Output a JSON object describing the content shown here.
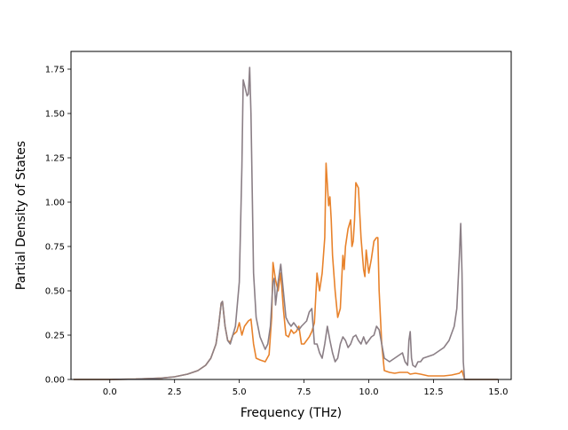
{
  "chart_data": {
    "type": "line",
    "title": "",
    "xlabel": "Frequency (THz)",
    "ylabel": "Partial Density of States",
    "xlim": [
      -1.5,
      15.5
    ],
    "ylim": [
      0.0,
      1.85
    ],
    "xticks": [
      0.0,
      2.5,
      5.0,
      7.5,
      10.0,
      12.5,
      15.0
    ],
    "xtick_labels": [
      "0.0",
      "2.5",
      "5.0",
      "7.5",
      "10.0",
      "12.5",
      "15.0"
    ],
    "yticks": [
      0.0,
      0.25,
      0.5,
      0.75,
      1.0,
      1.25,
      1.5,
      1.75
    ],
    "ytick_labels": [
      "0.00",
      "0.25",
      "0.50",
      "0.75",
      "1.00",
      "1.25",
      "1.50",
      "1.75"
    ],
    "grid": false,
    "legend": "none",
    "series": [
      {
        "color": "#e8822b",
        "points": [
          [
            -1.4,
            0.0
          ],
          [
            0.0,
            0.0
          ],
          [
            1.0,
            0.002
          ],
          [
            2.0,
            0.008
          ],
          [
            2.5,
            0.015
          ],
          [
            3.0,
            0.03
          ],
          [
            3.4,
            0.05
          ],
          [
            3.7,
            0.08
          ],
          [
            3.9,
            0.12
          ],
          [
            4.1,
            0.2
          ],
          [
            4.2,
            0.3
          ],
          [
            4.3,
            0.43
          ],
          [
            4.35,
            0.44
          ],
          [
            4.45,
            0.3
          ],
          [
            4.55,
            0.22
          ],
          [
            4.65,
            0.21
          ],
          [
            4.75,
            0.25
          ],
          [
            4.9,
            0.27
          ],
          [
            5.0,
            0.32
          ],
          [
            5.1,
            0.25
          ],
          [
            5.2,
            0.3
          ],
          [
            5.35,
            0.33
          ],
          [
            5.45,
            0.34
          ],
          [
            5.55,
            0.2
          ],
          [
            5.65,
            0.12
          ],
          [
            5.8,
            0.11
          ],
          [
            6.0,
            0.1
          ],
          [
            6.15,
            0.14
          ],
          [
            6.25,
            0.35
          ],
          [
            6.3,
            0.66
          ],
          [
            6.4,
            0.56
          ],
          [
            6.5,
            0.5
          ],
          [
            6.6,
            0.6
          ],
          [
            6.7,
            0.4
          ],
          [
            6.8,
            0.25
          ],
          [
            6.9,
            0.24
          ],
          [
            7.0,
            0.28
          ],
          [
            7.1,
            0.26
          ],
          [
            7.2,
            0.27
          ],
          [
            7.3,
            0.3
          ],
          [
            7.4,
            0.2
          ],
          [
            7.5,
            0.2
          ],
          [
            7.6,
            0.22
          ],
          [
            7.7,
            0.24
          ],
          [
            7.8,
            0.27
          ],
          [
            7.9,
            0.32
          ],
          [
            8.0,
            0.6
          ],
          [
            8.1,
            0.5
          ],
          [
            8.2,
            0.6
          ],
          [
            8.3,
            0.8
          ],
          [
            8.35,
            1.22
          ],
          [
            8.4,
            1.1
          ],
          [
            8.45,
            0.98
          ],
          [
            8.5,
            1.03
          ],
          [
            8.55,
            0.9
          ],
          [
            8.6,
            0.7
          ],
          [
            8.7,
            0.5
          ],
          [
            8.8,
            0.35
          ],
          [
            8.9,
            0.4
          ],
          [
            9.0,
            0.7
          ],
          [
            9.05,
            0.62
          ],
          [
            9.1,
            0.75
          ],
          [
            9.2,
            0.85
          ],
          [
            9.3,
            0.9
          ],
          [
            9.35,
            0.75
          ],
          [
            9.4,
            0.78
          ],
          [
            9.45,
            0.9
          ],
          [
            9.5,
            1.11
          ],
          [
            9.6,
            1.08
          ],
          [
            9.7,
            0.8
          ],
          [
            9.8,
            0.62
          ],
          [
            9.85,
            0.58
          ],
          [
            9.9,
            0.73
          ],
          [
            10.0,
            0.6
          ],
          [
            10.1,
            0.68
          ],
          [
            10.2,
            0.78
          ],
          [
            10.3,
            0.8
          ],
          [
            10.35,
            0.8
          ],
          [
            10.4,
            0.5
          ],
          [
            10.5,
            0.2
          ],
          [
            10.6,
            0.05
          ],
          [
            10.8,
            0.04
          ],
          [
            11.0,
            0.035
          ],
          [
            11.2,
            0.04
          ],
          [
            11.5,
            0.04
          ],
          [
            11.6,
            0.03
          ],
          [
            11.8,
            0.035
          ],
          [
            12.0,
            0.03
          ],
          [
            12.3,
            0.02
          ],
          [
            12.6,
            0.02
          ],
          [
            12.9,
            0.02
          ],
          [
            13.2,
            0.025
          ],
          [
            13.5,
            0.035
          ],
          [
            13.6,
            0.05
          ],
          [
            13.7,
            0.0
          ],
          [
            15.0,
            0.0
          ]
        ]
      },
      {
        "color": "#8b7f86",
        "points": [
          [
            -1.4,
            0.0
          ],
          [
            0.0,
            0.0
          ],
          [
            1.0,
            0.002
          ],
          [
            2.0,
            0.008
          ],
          [
            2.5,
            0.015
          ],
          [
            3.0,
            0.03
          ],
          [
            3.4,
            0.05
          ],
          [
            3.7,
            0.08
          ],
          [
            3.9,
            0.12
          ],
          [
            4.1,
            0.2
          ],
          [
            4.2,
            0.3
          ],
          [
            4.3,
            0.43
          ],
          [
            4.35,
            0.44
          ],
          [
            4.45,
            0.3
          ],
          [
            4.55,
            0.22
          ],
          [
            4.65,
            0.2
          ],
          [
            4.75,
            0.25
          ],
          [
            4.85,
            0.3
          ],
          [
            5.0,
            0.55
          ],
          [
            5.1,
            1.2
          ],
          [
            5.15,
            1.69
          ],
          [
            5.2,
            1.66
          ],
          [
            5.3,
            1.6
          ],
          [
            5.35,
            1.61
          ],
          [
            5.4,
            1.76
          ],
          [
            5.45,
            1.5
          ],
          [
            5.55,
            0.6
          ],
          [
            5.65,
            0.35
          ],
          [
            5.8,
            0.24
          ],
          [
            6.0,
            0.17
          ],
          [
            6.1,
            0.2
          ],
          [
            6.2,
            0.3
          ],
          [
            6.3,
            0.55
          ],
          [
            6.35,
            0.57
          ],
          [
            6.4,
            0.42
          ],
          [
            6.5,
            0.55
          ],
          [
            6.6,
            0.65
          ],
          [
            6.7,
            0.5
          ],
          [
            6.8,
            0.35
          ],
          [
            6.9,
            0.32
          ],
          [
            7.0,
            0.3
          ],
          [
            7.1,
            0.32
          ],
          [
            7.2,
            0.3
          ],
          [
            7.3,
            0.28
          ],
          [
            7.4,
            0.3
          ],
          [
            7.6,
            0.33
          ],
          [
            7.7,
            0.38
          ],
          [
            7.8,
            0.4
          ],
          [
            7.9,
            0.2
          ],
          [
            8.0,
            0.2
          ],
          [
            8.1,
            0.15
          ],
          [
            8.2,
            0.12
          ],
          [
            8.3,
            0.2
          ],
          [
            8.4,
            0.3
          ],
          [
            8.5,
            0.22
          ],
          [
            8.6,
            0.15
          ],
          [
            8.7,
            0.1
          ],
          [
            8.8,
            0.12
          ],
          [
            8.9,
            0.2
          ],
          [
            9.0,
            0.24
          ],
          [
            9.1,
            0.22
          ],
          [
            9.2,
            0.18
          ],
          [
            9.3,
            0.2
          ],
          [
            9.4,
            0.24
          ],
          [
            9.5,
            0.25
          ],
          [
            9.6,
            0.22
          ],
          [
            9.7,
            0.2
          ],
          [
            9.8,
            0.24
          ],
          [
            9.9,
            0.2
          ],
          [
            10.0,
            0.22
          ],
          [
            10.1,
            0.24
          ],
          [
            10.2,
            0.25
          ],
          [
            10.3,
            0.3
          ],
          [
            10.4,
            0.28
          ],
          [
            10.5,
            0.2
          ],
          [
            10.6,
            0.12
          ],
          [
            10.8,
            0.1
          ],
          [
            11.0,
            0.12
          ],
          [
            11.2,
            0.14
          ],
          [
            11.3,
            0.15
          ],
          [
            11.4,
            0.1
          ],
          [
            11.5,
            0.08
          ],
          [
            11.55,
            0.22
          ],
          [
            11.6,
            0.27
          ],
          [
            11.65,
            0.12
          ],
          [
            11.7,
            0.08
          ],
          [
            11.8,
            0.07
          ],
          [
            11.9,
            0.1
          ],
          [
            12.0,
            0.1
          ],
          [
            12.1,
            0.12
          ],
          [
            12.3,
            0.13
          ],
          [
            12.5,
            0.14
          ],
          [
            12.7,
            0.16
          ],
          [
            12.9,
            0.18
          ],
          [
            13.1,
            0.22
          ],
          [
            13.3,
            0.3
          ],
          [
            13.4,
            0.4
          ],
          [
            13.5,
            0.7
          ],
          [
            13.55,
            0.88
          ],
          [
            13.6,
            0.6
          ],
          [
            13.65,
            0.1
          ],
          [
            13.7,
            0.0
          ],
          [
            15.0,
            0.0
          ]
        ]
      }
    ]
  }
}
